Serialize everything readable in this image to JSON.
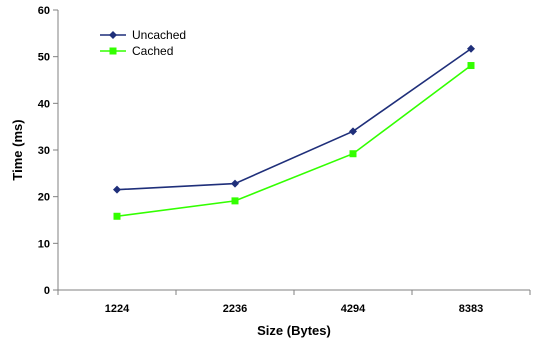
{
  "chart_data": {
    "type": "line",
    "categories": [
      "1224",
      "2236",
      "4294",
      "8383"
    ],
    "series": [
      {
        "name": "Uncached",
        "values": [
          21.5,
          22.8,
          34.0,
          51.7
        ],
        "color": "#1f2f7a",
        "marker": "diamond"
      },
      {
        "name": "Cached",
        "values": [
          15.8,
          19.1,
          29.2,
          48.1
        ],
        "color": "#33ff00",
        "marker": "square"
      }
    ],
    "xlabel": "Size (Bytes)",
    "ylabel": "Time (ms)",
    "ylim": [
      0,
      60
    ],
    "yticks": [
      0,
      10,
      20,
      30,
      40,
      50,
      60
    ],
    "legend": "top-left",
    "grid": false
  }
}
